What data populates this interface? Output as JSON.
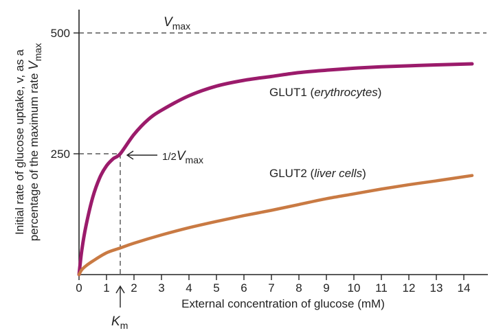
{
  "chart_data": {
    "type": "line",
    "title": "",
    "xlabel": "External concentration of glucose (mM)",
    "ylabel_line1": "Initial rate of glucose uptake, v, as a",
    "ylabel_line2_prefix": "percentage of the maximum rate",
    "ylabel_line2_symbol": "V",
    "ylabel_line2_sub": "max",
    "xlim": [
      0,
      14.3
    ],
    "ylim": [
      0,
      500
    ],
    "xticks": [
      "0",
      "1",
      "2",
      "3",
      "4",
      "5",
      "6",
      "7",
      "8",
      "9",
      "10",
      "11",
      "12",
      "13",
      "14"
    ],
    "yticks": [
      "250",
      "500"
    ],
    "vmax_value": 500,
    "km_value": 1.5,
    "half_vmax_value": 250,
    "series": [
      {
        "name": "GLUT1",
        "name_paren": "erythrocytes",
        "color": "#9b1b6b",
        "x": [
          0,
          0.1,
          0.25,
          0.5,
          0.75,
          1,
          1.25,
          1.5,
          2,
          2.5,
          3,
          4,
          5,
          6,
          7,
          8,
          9,
          10,
          11,
          12,
          13,
          14.3
        ],
        "y": [
          0,
          50,
          100,
          160,
          200,
          225,
          240,
          250,
          290,
          320,
          340,
          370,
          390,
          402,
          410,
          418,
          423,
          427,
          430,
          432,
          434,
          436
        ]
      },
      {
        "name": "GLUT2",
        "name_paren": "liver cells",
        "color": "#c97a43",
        "x": [
          0,
          0.1,
          0.25,
          0.5,
          1,
          1.5,
          2,
          3,
          4,
          5,
          6,
          7,
          8,
          9,
          10,
          11,
          12,
          13,
          14.3
        ],
        "y": [
          0,
          10,
          18,
          28,
          45,
          55,
          65,
          82,
          97,
          110,
          122,
          133,
          145,
          157,
          167,
          177,
          186,
          194,
          205
        ]
      }
    ],
    "annotations": {
      "vmax_symbol": "V",
      "vmax_sub": "max",
      "half_vmax_fraction": "1/2",
      "half_vmax_symbol": "V",
      "half_vmax_sub": "max",
      "km_symbol": "K",
      "km_sub": "m"
    },
    "grid": false
  }
}
